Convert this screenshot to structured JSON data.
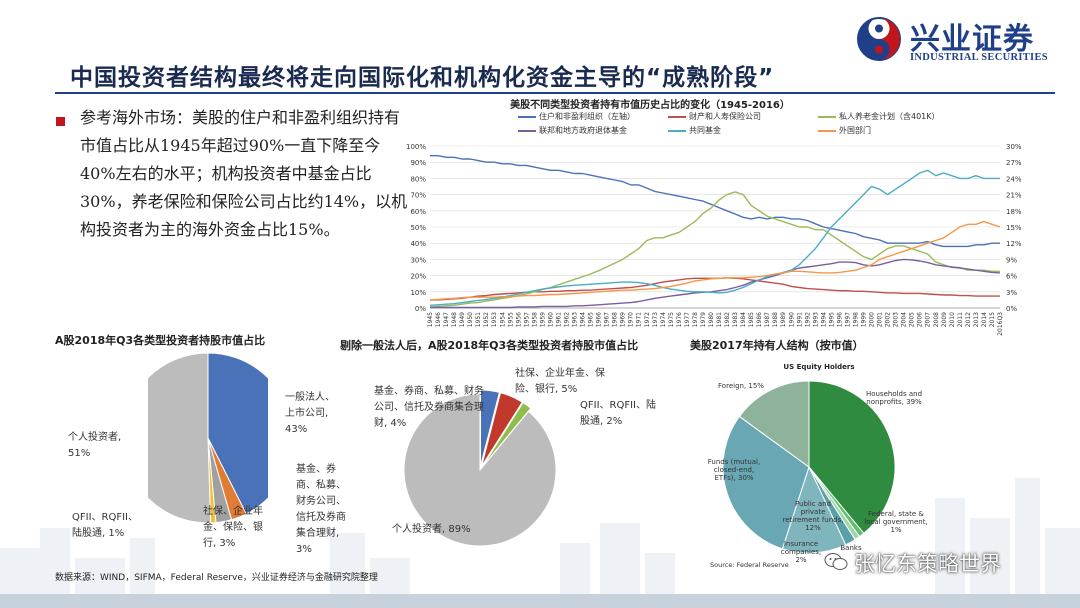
{
  "header": {
    "logo_cn": "兴业证券",
    "logo_en": "INDUSTRIAL SECURITIES",
    "page_title": "中国投资者结构最终将走向国际化和机构化资金主导的“成熟阶段”"
  },
  "bullet": {
    "text": "参考海外市场：美股的住户和非盈利组织持有市值占比从1945年超过90%一直下降至今40%左右的水平；机构投资者中基金占比30%，养老保险和保险公司占比约14%，以机构投资者为主的海外资金占比15%。"
  },
  "colors": {
    "accent_red": "#c0161c",
    "brand_blue": "#1f3f88",
    "households": "#4a72b8",
    "insurance": "#c0504d",
    "pension": "#9bbb59",
    "government": "#7a5fa0",
    "mutual_funds": "#4bacc6",
    "foreign": "#f79646"
  },
  "chart_data": [
    {
      "type": "line",
      "title": "美股不同类型投资者持有市值历史占比的变化（1945-2016）",
      "x": [
        "1945",
        "1946",
        "1947",
        "1948",
        "1949",
        "1950",
        "1951",
        "1952",
        "1953",
        "1954",
        "1955",
        "1956",
        "1957",
        "1958",
        "1959",
        "1960",
        "1961",
        "1962",
        "1963",
        "1964",
        "1965",
        "1966",
        "1967",
        "1968",
        "1969",
        "1970",
        "1971",
        "1972",
        "1973",
        "1974",
        "1975",
        "1976",
        "1977",
        "1978",
        "1979",
        "1980",
        "1981",
        "1982",
        "1983",
        "1984",
        "1985",
        "1986",
        "1987",
        "1988",
        "1989",
        "1990",
        "1991",
        "1992",
        "1993",
        "1994",
        "1995",
        "1996",
        "1997",
        "1998",
        "1999",
        "2000",
        "2001",
        "2002",
        "2003",
        "2004",
        "2005",
        "2006",
        "2007",
        "2008",
        "2009",
        "2010",
        "2011",
        "2012",
        "2013",
        "2014",
        "2015",
        "2016Q3"
      ],
      "y_left_ticks": [
        "0%",
        "10%",
        "20%",
        "30%",
        "40%",
        "50%",
        "60%",
        "70%",
        "80%",
        "90%",
        "100%"
      ],
      "y_right_ticks": [
        "0%",
        "3%",
        "6%",
        "9%",
        "12%",
        "15%",
        "18%",
        "21%",
        "24%",
        "27%",
        "30%"
      ],
      "ylim_left": [
        0,
        100
      ],
      "ylim_right": [
        0,
        30
      ],
      "grid": true,
      "legend_position": "top",
      "series": [
        {
          "name": "住户和非盈利组织（左轴）",
          "axis": "left",
          "color": "#4a72b8",
          "values": [
            94,
            94,
            93,
            93,
            92,
            92,
            91,
            90,
            90,
            89,
            89,
            88,
            88,
            87,
            86,
            85,
            85,
            84,
            83,
            83,
            82,
            81,
            80,
            79,
            78,
            76,
            76,
            74,
            72,
            71,
            70,
            69,
            68,
            67,
            66,
            64,
            62,
            60,
            58,
            56,
            55,
            56,
            55,
            56,
            56,
            55,
            55,
            54,
            52,
            50,
            49,
            48,
            47,
            46,
            44,
            43,
            42,
            40,
            40,
            40,
            40,
            40,
            41,
            39,
            38,
            38,
            38,
            38,
            39,
            39,
            40,
            40
          ]
        },
        {
          "name": "财产和人寿保险公司",
          "axis": "right",
          "color": "#c0504d",
          "values": [
            1.5,
            1.5,
            1.6,
            1.7,
            1.8,
            2.0,
            2.2,
            2.3,
            2.5,
            2.6,
            2.7,
            2.8,
            2.9,
            3.0,
            3.0,
            3.1,
            3.1,
            3.2,
            3.2,
            3.3,
            3.3,
            3.4,
            3.5,
            3.6,
            3.7,
            3.8,
            4.0,
            4.2,
            4.5,
            4.8,
            5.0,
            5.2,
            5.4,
            5.5,
            5.5,
            5.5,
            5.5,
            5.6,
            5.5,
            5.4,
            5.2,
            5.0,
            4.8,
            4.6,
            4.4,
            4.0,
            3.8,
            3.6,
            3.5,
            3.4,
            3.3,
            3.2,
            3.2,
            3.1,
            3.1,
            3.0,
            2.9,
            2.8,
            2.8,
            2.7,
            2.7,
            2.7,
            2.6,
            2.5,
            2.4,
            2.4,
            2.3,
            2.3,
            2.2,
            2.2,
            2.2,
            2.2
          ]
        },
        {
          "name": "私人养老金计划（含401K）",
          "axis": "right",
          "color": "#9bbb59",
          "values": [
            0.2,
            0.3,
            0.4,
            0.5,
            0.7,
            0.9,
            1.0,
            1.3,
            1.5,
            1.8,
            2.0,
            2.3,
            2.6,
            3.0,
            3.4,
            3.8,
            4.3,
            4.8,
            5.3,
            5.8,
            6.3,
            6.9,
            7.6,
            8.3,
            9.0,
            10.0,
            11.0,
            12.5,
            13.0,
            13.0,
            13.5,
            14.0,
            15.0,
            16.0,
            17.5,
            18.5,
            20.0,
            21.0,
            21.5,
            21.0,
            19.0,
            18.0,
            17.0,
            16.5,
            16.0,
            15.5,
            15.0,
            15.0,
            14.5,
            14.5,
            13.5,
            12.5,
            11.5,
            10.5,
            9.5,
            9.0,
            10.0,
            11.0,
            11.5,
            11.5,
            11.0,
            10.5,
            10.0,
            8.5,
            8.0,
            7.5,
            7.5,
            7.0,
            7.0,
            7.0,
            6.8,
            6.8
          ]
        },
        {
          "name": "联邦和地方政府退体基金",
          "axis": "right",
          "color": "#7a5fa0",
          "values": [
            0.1,
            0.1,
            0.1,
            0.1,
            0.1,
            0.1,
            0.1,
            0.1,
            0.1,
            0.1,
            0.1,
            0.2,
            0.2,
            0.2,
            0.3,
            0.3,
            0.3,
            0.3,
            0.4,
            0.4,
            0.5,
            0.6,
            0.7,
            0.8,
            0.9,
            1.0,
            1.2,
            1.5,
            1.8,
            2.0,
            2.2,
            2.4,
            2.6,
            2.8,
            2.9,
            3.0,
            3.2,
            3.4,
            3.8,
            4.2,
            4.8,
            5.2,
            5.6,
            6.0,
            6.5,
            7.0,
            7.4,
            7.6,
            7.8,
            8.0,
            8.2,
            8.5,
            8.5,
            8.4,
            8.0,
            7.8,
            8.0,
            8.4,
            8.8,
            9.0,
            8.9,
            8.7,
            8.4,
            8.0,
            7.8,
            7.6,
            7.4,
            7.2,
            7.0,
            6.8,
            6.6,
            6.5
          ]
        },
        {
          "name": "共同基金",
          "axis": "right",
          "color": "#4bacc6",
          "values": [
            0.5,
            0.6,
            0.7,
            0.8,
            1.0,
            1.2,
            1.4,
            1.6,
            1.8,
            2.0,
            2.3,
            2.6,
            2.9,
            3.2,
            3.5,
            3.7,
            3.9,
            4.1,
            4.2,
            4.3,
            4.4,
            4.5,
            4.6,
            4.7,
            4.8,
            4.8,
            4.7,
            4.5,
            4.2,
            3.8,
            3.5,
            3.3,
            3.1,
            3.0,
            3.0,
            2.9,
            2.8,
            2.9,
            3.3,
            3.8,
            4.5,
            5.2,
            5.8,
            6.2,
            6.6,
            7.0,
            8.0,
            9.5,
            11.0,
            13.0,
            15.0,
            16.5,
            18.0,
            19.5,
            21.0,
            22.5,
            22.0,
            21.0,
            22.0,
            23.0,
            24.0,
            25.0,
            25.5,
            24.5,
            25.0,
            24.5,
            24.0,
            24.0,
            24.5,
            24.0,
            24.0,
            24.0
          ]
        },
        {
          "name": "外国部门",
          "axis": "right",
          "color": "#f79646",
          "values": [
            1.5,
            1.6,
            1.7,
            1.8,
            1.9,
            2.0,
            2.0,
            2.0,
            2.0,
            2.1,
            2.1,
            2.2,
            2.3,
            2.3,
            2.4,
            2.5,
            2.5,
            2.6,
            2.7,
            2.8,
            2.9,
            3.0,
            3.1,
            3.2,
            3.3,
            3.3,
            3.4,
            3.5,
            3.6,
            3.8,
            4.0,
            4.3,
            4.6,
            5.0,
            5.2,
            5.4,
            5.5,
            5.6,
            5.6,
            5.6,
            5.7,
            5.8,
            6.0,
            6.3,
            6.5,
            6.8,
            6.8,
            6.7,
            6.6,
            6.5,
            6.5,
            6.6,
            6.8,
            7.0,
            7.5,
            8.0,
            9.0,
            9.5,
            10.0,
            10.5,
            11.0,
            11.5,
            12.0,
            12.5,
            13.0,
            14.0,
            15.0,
            15.5,
            15.5,
            16.0,
            15.5,
            15.0
          ]
        }
      ]
    },
    {
      "type": "pie",
      "title": "A股2018年Q3各类型投资者持股市值占比",
      "slices": [
        {
          "label": "一般法人、上市公司, 43%",
          "value": 43,
          "color": "#4a72b8"
        },
        {
          "label": "基金、券商、私募、财务公司、信托及券商集合理财, 3%",
          "value": 3,
          "color": "#e07c34"
        },
        {
          "label": "社保、企业年金、保险、银行, 3%",
          "value": 3,
          "color": "#a0a0a0"
        },
        {
          "label": "QFII、RQFII、陆股通, 1%",
          "value": 1,
          "color": "#f0c030"
        },
        {
          "label": "个人投资者, 51%",
          "value": 51,
          "color": "#bcbcbc"
        }
      ]
    },
    {
      "type": "pie",
      "title": "剔除一般法人后，A股2018年Q3各类型投资者持股市值占比",
      "slices": [
        {
          "label": "基金、券商、私募、财务公司、信托及券商集合理财, 4%",
          "value": 4,
          "color": "#4a72b8"
        },
        {
          "label": "社保、企业年金、保险、银行, 5%",
          "value": 5,
          "color": "#c0392b"
        },
        {
          "label": "QFII、RQFII、陆股通, 2%",
          "value": 2,
          "color": "#8fbc4a"
        },
        {
          "label": "个人投资者, 89%",
          "value": 89,
          "color": "#bcbcbc"
        }
      ]
    },
    {
      "type": "pie",
      "title": "美股2017年持有人结构（按市值）",
      "subtitle": "US Equity Holders",
      "source": "Source: Federal Reserve",
      "slices": [
        {
          "label": "Households and nonprofits, 39%",
          "value": 39,
          "color": "#2e8b40"
        },
        {
          "label": "Federal, state & local government, 1%",
          "value": 1,
          "color": "#5fbf70"
        },
        {
          "label": "Banks, 1%",
          "value": 1,
          "color": "#9fd8a8"
        },
        {
          "label": "Insurance companies, 2%",
          "value": 2,
          "color": "#5aa0a8"
        },
        {
          "label": "Public and private retirement funds, 12%",
          "value": 12,
          "color": "#7fb6be"
        },
        {
          "label": "Funds (mutual, closed-end, ETFs), 30%",
          "value": 30,
          "color": "#6aa7b4"
        },
        {
          "label": "Foreign, 15%",
          "value": 15,
          "color": "#8fb39a"
        }
      ]
    }
  ],
  "pie1_labels": {
    "corp": "一般法人、上市公司, 43%",
    "funds": "基金、券商、私募、财务公司、信托及券商集合理财, 3%",
    "social": "社保、企业年金、保险、银行, 3%",
    "qfii": "QFII、RQFII、陆股通, 1%",
    "retail": "个人投资者, 51%"
  },
  "pie2_labels": {
    "funds": "基金、券商、私募、财务公司、信托及券商集合理财, 4%",
    "social": "社保、企业年金、保险、银行, 5%",
    "qfii": "QFII、RQFII、陆股通, 2%",
    "retail": "个人投资者, 89%"
  },
  "us_labels": {
    "foreign": "Foreign, 15%",
    "households": "Households and nonprofits, 39%",
    "funds": "Funds (mutual, closed-end, ETFs), 30%",
    "retirement": "Public and private retirement funds, 12%",
    "government": "Federal, state & local government, 1%",
    "insurance": "Insurance companies, 2%",
    "banks": "Banks"
  },
  "footer": {
    "source": "数据来源：WIND，SIFMA，Federal Reserve，兴业证券经济与金融研究院整理",
    "watermark": "张忆东策略世界"
  }
}
